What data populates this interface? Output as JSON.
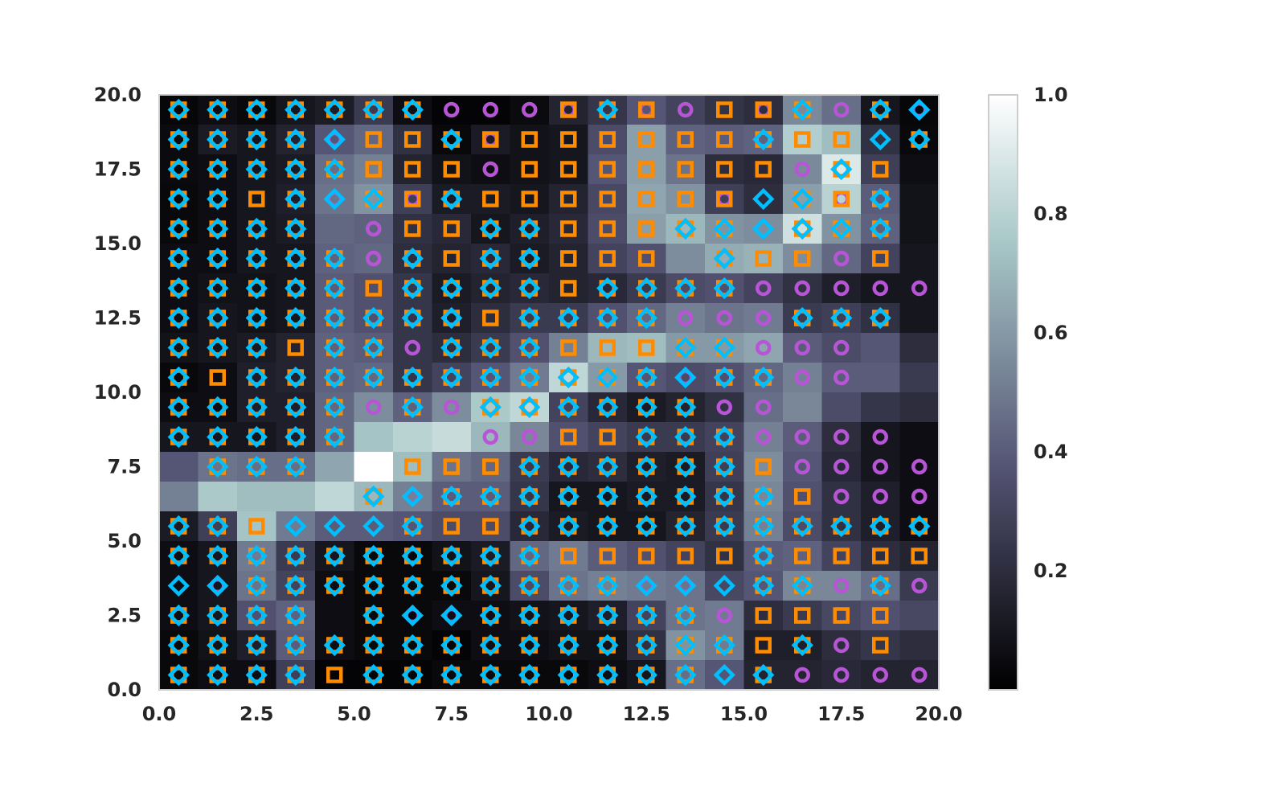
{
  "chart_data": {
    "type": "heatmap",
    "title": "",
    "xlabel": "",
    "ylabel": "",
    "xlim": [
      0,
      20
    ],
    "ylim": [
      0,
      20
    ],
    "x_ticks": [
      "0.0",
      "2.5",
      "5.0",
      "7.5",
      "10.0",
      "12.5",
      "15.0",
      "17.5",
      "20.0"
    ],
    "y_ticks": [
      "0.0",
      "2.5",
      "5.0",
      "7.5",
      "10.0",
      "12.5",
      "15.0",
      "17.5",
      "20.0"
    ],
    "colorbar": {
      "range": [
        0,
        1
      ],
      "ticks": [
        "0.2",
        "0.4",
        "0.6",
        "0.8",
        "1.0"
      ],
      "colormap": "bone"
    },
    "grid_size": [
      20,
      20
    ],
    "heatmap_rows_top_to_bottom": [
      [
        0.03,
        0.06,
        0.04,
        0.1,
        0.13,
        0.26,
        0.06,
        0.02,
        0.02,
        0.05,
        0.16,
        0.24,
        0.38,
        0.3,
        0.23,
        0.2,
        0.55,
        0.46,
        0.1,
        0.03
      ],
      [
        0.05,
        0.12,
        0.1,
        0.16,
        0.38,
        0.44,
        0.22,
        0.04,
        0.12,
        0.08,
        0.1,
        0.34,
        0.62,
        0.42,
        0.4,
        0.42,
        0.78,
        0.72,
        0.22,
        0.04
      ],
      [
        0.05,
        0.06,
        0.1,
        0.12,
        0.46,
        0.52,
        0.16,
        0.08,
        0.06,
        0.08,
        0.1,
        0.38,
        0.62,
        0.48,
        0.2,
        0.18,
        0.55,
        0.9,
        0.28,
        0.06
      ],
      [
        0.04,
        0.06,
        0.1,
        0.14,
        0.48,
        0.58,
        0.28,
        0.12,
        0.12,
        0.1,
        0.16,
        0.32,
        0.64,
        0.58,
        0.28,
        0.2,
        0.62,
        0.8,
        0.4,
        0.08
      ],
      [
        0.04,
        0.06,
        0.1,
        0.12,
        0.44,
        0.42,
        0.22,
        0.18,
        0.1,
        0.14,
        0.18,
        0.34,
        0.62,
        0.7,
        0.58,
        0.56,
        0.86,
        0.58,
        0.42,
        0.08
      ],
      [
        0.06,
        0.06,
        0.1,
        0.1,
        0.42,
        0.44,
        0.2,
        0.16,
        0.18,
        0.12,
        0.16,
        0.3,
        0.36,
        0.56,
        0.66,
        0.68,
        0.56,
        0.44,
        0.3,
        0.1
      ],
      [
        0.06,
        0.08,
        0.08,
        0.1,
        0.4,
        0.36,
        0.24,
        0.12,
        0.16,
        0.18,
        0.16,
        0.18,
        0.26,
        0.34,
        0.36,
        0.3,
        0.22,
        0.14,
        0.1,
        0.1
      ],
      [
        0.06,
        0.1,
        0.08,
        0.1,
        0.4,
        0.36,
        0.24,
        0.14,
        0.2,
        0.26,
        0.26,
        0.36,
        0.44,
        0.52,
        0.48,
        0.5,
        0.26,
        0.28,
        0.22,
        0.1
      ],
      [
        0.08,
        0.1,
        0.12,
        0.16,
        0.42,
        0.4,
        0.24,
        0.2,
        0.26,
        0.36,
        0.52,
        0.7,
        0.72,
        0.6,
        0.6,
        0.64,
        0.4,
        0.34,
        0.38,
        0.2
      ],
      [
        0.04,
        0.06,
        0.14,
        0.16,
        0.42,
        0.44,
        0.24,
        0.3,
        0.38,
        0.5,
        0.82,
        0.6,
        0.38,
        0.34,
        0.36,
        0.44,
        0.52,
        0.4,
        0.4,
        0.26
      ],
      [
        0.06,
        0.06,
        0.14,
        0.14,
        0.44,
        0.56,
        0.42,
        0.56,
        0.76,
        0.82,
        0.3,
        0.18,
        0.12,
        0.16,
        0.22,
        0.46,
        0.54,
        0.34,
        0.24,
        0.2
      ],
      [
        0.1,
        0.1,
        0.1,
        0.14,
        0.44,
        0.74,
        0.8,
        0.84,
        0.7,
        0.54,
        0.36,
        0.3,
        0.26,
        0.26,
        0.3,
        0.52,
        0.4,
        0.2,
        0.1,
        0.06
      ],
      [
        0.38,
        0.48,
        0.46,
        0.46,
        0.64,
        1.0,
        0.72,
        0.48,
        0.44,
        0.26,
        0.18,
        0.2,
        0.14,
        0.12,
        0.28,
        0.56,
        0.38,
        0.18,
        0.1,
        0.06
      ],
      [
        0.52,
        0.76,
        0.72,
        0.72,
        0.82,
        0.7,
        0.52,
        0.4,
        0.4,
        0.24,
        0.1,
        0.1,
        0.12,
        0.12,
        0.24,
        0.54,
        0.36,
        0.22,
        0.14,
        0.06
      ],
      [
        0.12,
        0.28,
        0.74,
        0.5,
        0.4,
        0.4,
        0.38,
        0.34,
        0.34,
        0.18,
        0.12,
        0.1,
        0.1,
        0.16,
        0.26,
        0.52,
        0.34,
        0.22,
        0.14,
        0.06
      ],
      [
        0.06,
        0.1,
        0.5,
        0.26,
        0.1,
        0.04,
        0.04,
        0.08,
        0.12,
        0.44,
        0.5,
        0.4,
        0.36,
        0.3,
        0.22,
        0.4,
        0.42,
        0.3,
        0.2,
        0.16
      ],
      [
        0.06,
        0.1,
        0.48,
        0.3,
        0.06,
        0.04,
        0.04,
        0.04,
        0.1,
        0.34,
        0.48,
        0.52,
        0.5,
        0.48,
        0.32,
        0.38,
        0.54,
        0.54,
        0.46,
        0.26
      ],
      [
        0.06,
        0.1,
        0.36,
        0.42,
        0.06,
        0.04,
        0.04,
        0.06,
        0.06,
        0.08,
        0.1,
        0.14,
        0.3,
        0.48,
        0.5,
        0.2,
        0.26,
        0.32,
        0.36,
        0.32
      ],
      [
        0.04,
        0.08,
        0.14,
        0.4,
        0.06,
        0.04,
        0.04,
        0.02,
        0.06,
        0.06,
        0.08,
        0.08,
        0.22,
        0.58,
        0.5,
        0.14,
        0.14,
        0.2,
        0.24,
        0.2
      ],
      [
        0.04,
        0.06,
        0.06,
        0.28,
        0.02,
        0.02,
        0.02,
        0.04,
        0.04,
        0.04,
        0.04,
        0.06,
        0.1,
        0.46,
        0.38,
        0.16,
        0.16,
        0.18,
        0.16,
        0.16
      ]
    ],
    "marker_series": [
      {
        "marker": "circle",
        "color": "#b855d6"
      },
      {
        "marker": "square",
        "color": "#ff8c00"
      },
      {
        "marker": "diamond",
        "color": "#00bfff"
      }
    ],
    "marker_codes_top_to_bottom": [
      "3T3TT8T11163612631T7",
      "TT33722T62222223224T",
      "T333T222122222221T2",
      "TT23736T22222264T63",
      "TT335122332223T4T33",
      "TTTT31T2T3222532212",
      "TTTT3233332333311111",
      "TT3T33332T333111333",
      "TTT23313T322233111",
      "T2T333333T33373311",
      "TTT331T133333T11",
      "TTTTT00011223331111",
      "0TT30022233333T21111",
      "0000037T333333T32111",
      "TT2444T22T33333T3T33",
      "TT333333TT22222T2222",
      "47333333TT33774T3131",
      "3T3353773333T312222",
      "T3T33333T33333T2312",
      "TT33233333333T4T1111"
    ]
  }
}
